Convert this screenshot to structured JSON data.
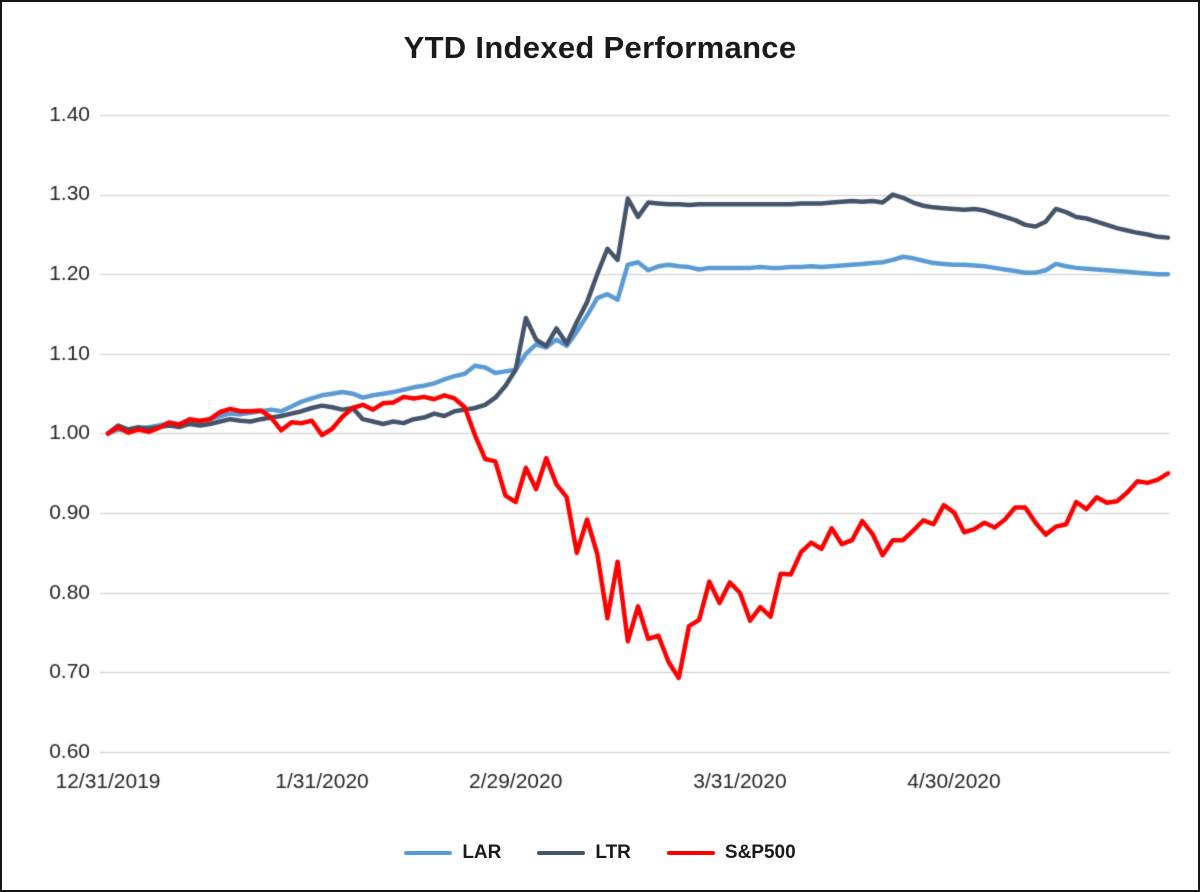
{
  "chart_data": {
    "type": "line",
    "title": "YTD Indexed Performance",
    "xlabel": "",
    "ylabel": "",
    "ylim": [
      0.6,
      1.4
    ],
    "y_ticks": [
      0.6,
      0.7,
      0.8,
      0.9,
      1.0,
      1.1,
      1.2,
      1.3,
      1.4
    ],
    "y_tick_labels": [
      "0.60",
      "0.70",
      "0.80",
      "0.90",
      "1.00",
      "1.10",
      "1.20",
      "1.30",
      "1.40"
    ],
    "x_count": 105,
    "x_tick_indices": [
      0,
      21,
      40,
      62,
      83
    ],
    "x_tick_labels": [
      "12/31/2019",
      "1/31/2020",
      "2/29/2020",
      "3/31/2020",
      "4/30/2020"
    ],
    "grid": true,
    "grid_color": "#d9d9d9",
    "text_color": "#262626",
    "legend_position": "bottom",
    "series": [
      {
        "name": "LAR",
        "color": "#5B9BD5",
        "values": [
          1.0,
          1.005,
          1.003,
          1.006,
          1.008,
          1.01,
          1.013,
          1.012,
          1.016,
          1.015,
          1.018,
          1.022,
          1.025,
          1.024,
          1.026,
          1.028,
          1.03,
          1.028,
          1.034,
          1.04,
          1.044,
          1.048,
          1.05,
          1.052,
          1.05,
          1.045,
          1.048,
          1.05,
          1.052,
          1.055,
          1.058,
          1.06,
          1.063,
          1.068,
          1.072,
          1.075,
          1.085,
          1.083,
          1.076,
          1.078,
          1.08,
          1.1,
          1.112,
          1.108,
          1.118,
          1.11,
          1.128,
          1.148,
          1.17,
          1.175,
          1.168,
          1.212,
          1.215,
          1.205,
          1.21,
          1.212,
          1.21,
          1.209,
          1.206,
          1.208,
          1.208,
          1.208,
          1.208,
          1.208,
          1.209,
          1.208,
          1.208,
          1.209,
          1.209,
          1.21,
          1.209,
          1.21,
          1.211,
          1.212,
          1.213,
          1.214,
          1.215,
          1.218,
          1.222,
          1.22,
          1.217,
          1.214,
          1.213,
          1.212,
          1.212,
          1.211,
          1.21,
          1.208,
          1.206,
          1.204,
          1.202,
          1.202,
          1.205,
          1.213,
          1.21,
          1.208,
          1.207,
          1.206,
          1.205,
          1.204,
          1.203,
          1.202,
          1.201,
          1.2,
          1.2
        ]
      },
      {
        "name": "LTR",
        "color": "#44546A",
        "values": [
          1.0,
          1.01,
          1.005,
          1.008,
          1.006,
          1.008,
          1.01,
          1.008,
          1.012,
          1.01,
          1.012,
          1.015,
          1.018,
          1.016,
          1.015,
          1.018,
          1.02,
          1.022,
          1.025,
          1.028,
          1.032,
          1.035,
          1.033,
          1.03,
          1.032,
          1.018,
          1.015,
          1.012,
          1.015,
          1.013,
          1.018,
          1.02,
          1.025,
          1.022,
          1.028,
          1.03,
          1.032,
          1.036,
          1.045,
          1.06,
          1.08,
          1.145,
          1.118,
          1.11,
          1.132,
          1.113,
          1.14,
          1.165,
          1.2,
          1.232,
          1.218,
          1.295,
          1.272,
          1.29,
          1.289,
          1.288,
          1.288,
          1.287,
          1.288,
          1.288,
          1.288,
          1.288,
          1.288,
          1.288,
          1.288,
          1.288,
          1.288,
          1.288,
          1.289,
          1.289,
          1.289,
          1.29,
          1.291,
          1.292,
          1.291,
          1.292,
          1.29,
          1.3,
          1.296,
          1.29,
          1.286,
          1.284,
          1.283,
          1.282,
          1.281,
          1.282,
          1.28,
          1.276,
          1.272,
          1.268,
          1.262,
          1.26,
          1.266,
          1.282,
          1.278,
          1.272,
          1.27,
          1.266,
          1.262,
          1.258,
          1.255,
          1.252,
          1.25,
          1.247,
          1.246
        ]
      },
      {
        "name": "S&P500",
        "color": "#FF0000",
        "values": [
          1.0,
          1.008,
          1.001,
          1.005,
          1.002,
          1.007,
          1.014,
          1.011,
          1.018,
          1.016,
          1.018,
          1.027,
          1.031,
          1.028,
          1.028,
          1.029,
          1.02,
          1.004,
          1.014,
          1.013,
          1.016,
          0.998,
          1.006,
          1.021,
          1.032,
          1.036,
          1.03,
          1.038,
          1.039,
          1.046,
          1.044,
          1.046,
          1.043,
          1.048,
          1.044,
          1.033,
          0.998,
          0.968,
          0.965,
          0.922,
          0.914,
          0.957,
          0.93,
          0.969,
          0.936,
          0.92,
          0.85,
          0.892,
          0.849,
          0.768,
          0.839,
          0.739,
          0.783,
          0.742,
          0.746,
          0.713,
          0.693,
          0.758,
          0.766,
          0.814,
          0.787,
          0.813,
          0.8,
          0.765,
          0.782,
          0.77,
          0.824,
          0.823,
          0.851,
          0.863,
          0.855,
          0.881,
          0.861,
          0.866,
          0.89,
          0.874,
          0.847,
          0.866,
          0.866,
          0.878,
          0.891,
          0.886,
          0.91,
          0.901,
          0.876,
          0.88,
          0.888,
          0.882,
          0.892,
          0.907,
          0.907,
          0.888,
          0.873,
          0.883,
          0.886,
          0.914,
          0.905,
          0.92,
          0.913,
          0.915,
          0.926,
          0.94,
          0.938,
          0.942,
          0.95
        ]
      }
    ]
  }
}
